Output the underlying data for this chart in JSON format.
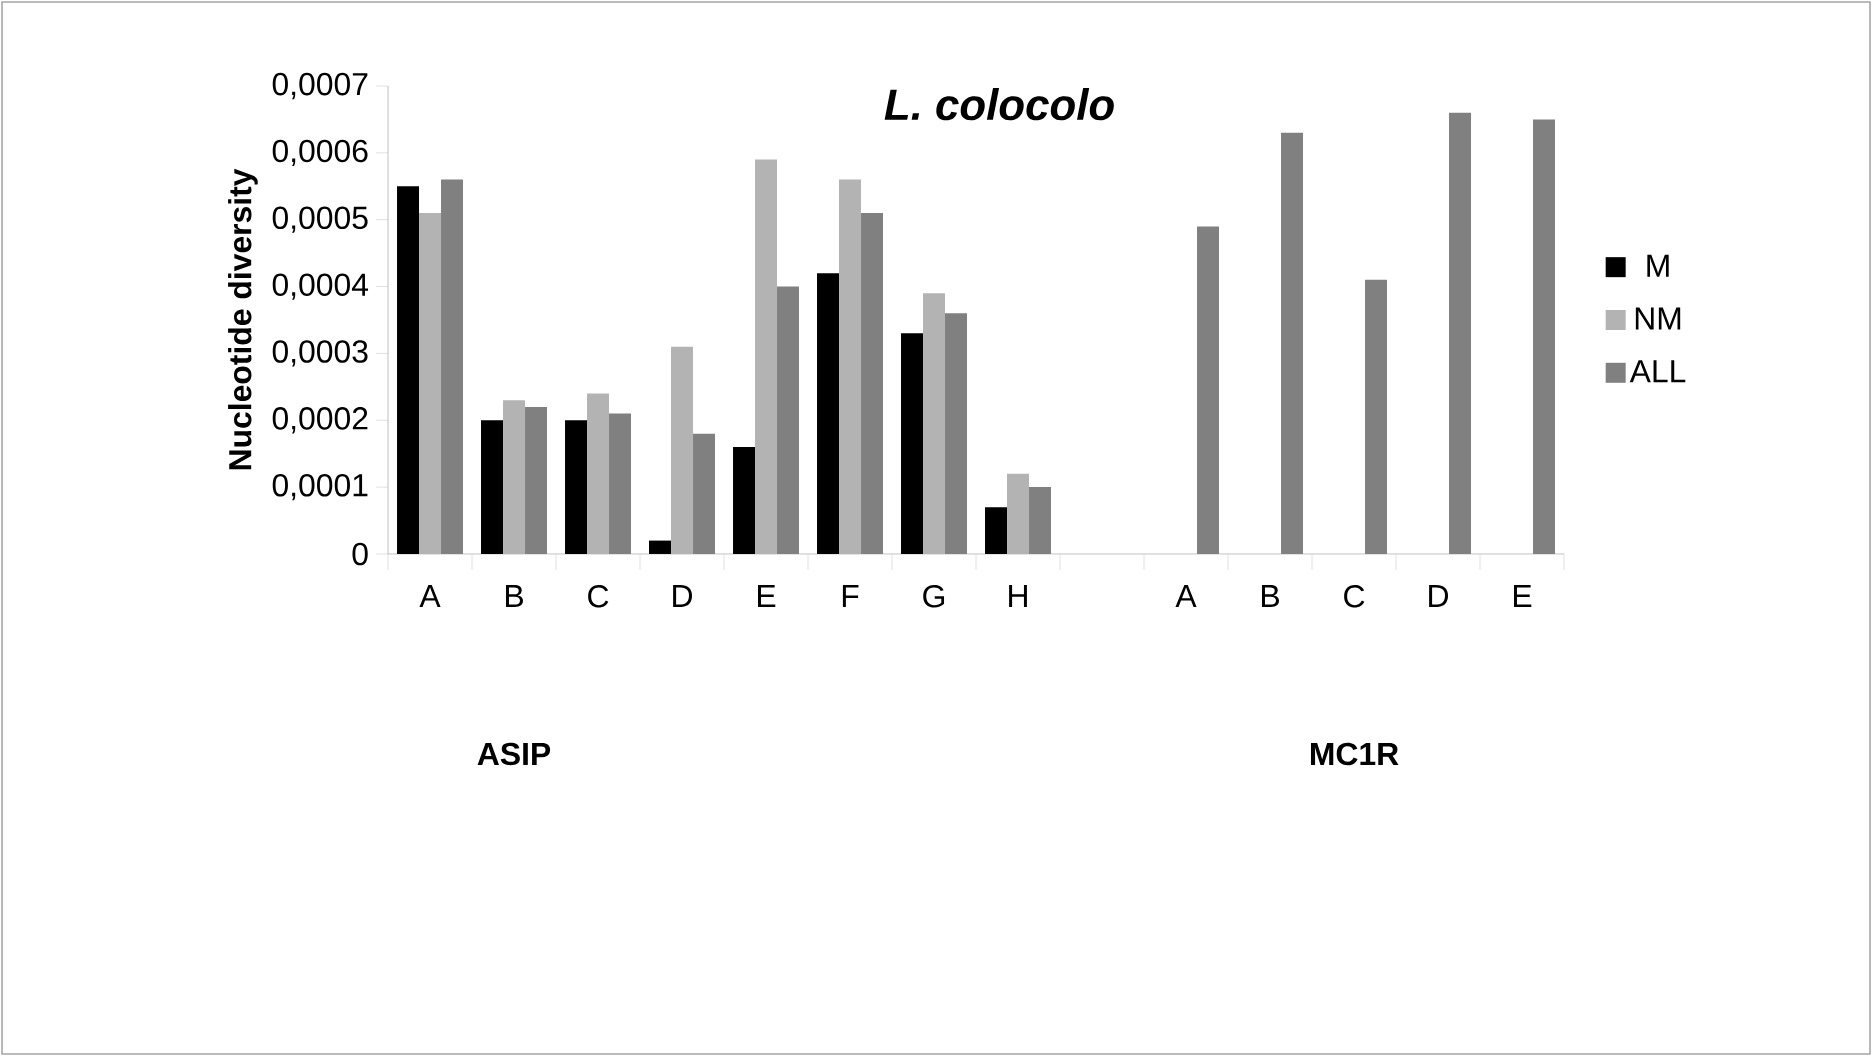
{
  "chart_data": {
    "type": "bar",
    "title": "L. colocolo",
    "ylabel": "Nucleotide diversity",
    "categories": [
      "A",
      "B",
      "C",
      "D",
      "E",
      "F",
      "G",
      "H",
      null,
      "A",
      "B",
      "C",
      "D",
      "E"
    ],
    "series": [
      {
        "name": "M",
        "color": "#000000",
        "values": [
          0.00055,
          0.0002,
          0.0002,
          2e-05,
          0.00016,
          0.00042,
          0.00033,
          7e-05,
          null,
          null,
          null,
          null,
          null,
          null
        ]
      },
      {
        "name": "NM",
        "color": "#b3b3b3",
        "values": [
          0.00051,
          0.00023,
          0.00024,
          0.00031,
          0.00059,
          0.00056,
          0.00039,
          0.00012,
          null,
          null,
          null,
          null,
          null,
          null
        ]
      },
      {
        "name": "ALL",
        "color": "#808080",
        "values": [
          0.00056,
          0.00022,
          0.00021,
          0.00018,
          0.0004,
          0.00051,
          0.00036,
          0.0001,
          null,
          0.00049,
          0.00063,
          0.00041,
          0.00066,
          0.00065
        ]
      }
    ],
    "ylim": [
      0,
      0.0007
    ],
    "yticks": [
      {
        "value": 0,
        "label": "0"
      },
      {
        "value": 0.0001,
        "label": "0,0001"
      },
      {
        "value": 0.0002,
        "label": "0,0002"
      },
      {
        "value": 0.0003,
        "label": "0,0003"
      },
      {
        "value": 0.0004,
        "label": "0,0004"
      },
      {
        "value": 0.0005,
        "label": "0,0005"
      },
      {
        "value": 0.0006,
        "label": "0,0006"
      },
      {
        "value": 0.0007,
        "label": "0,0007"
      }
    ],
    "annotations": [
      "ASIP",
      "MC1R"
    ],
    "grid": false,
    "legend": "right"
  }
}
